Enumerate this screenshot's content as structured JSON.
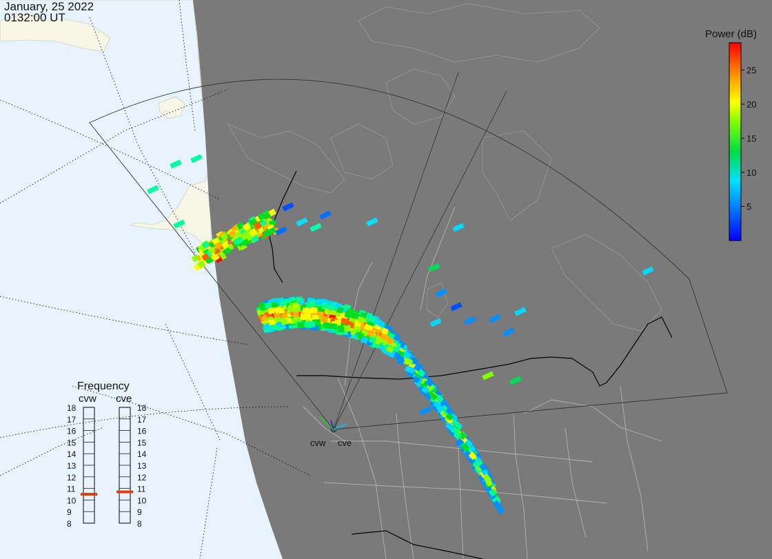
{
  "header": {
    "date": "January, 25 2022",
    "time": "0132:00 UT"
  },
  "colorbar": {
    "title": "Power (dB)",
    "ticks": [
      5,
      10,
      15,
      20,
      25
    ],
    "range": [
      0,
      29
    ],
    "colors": [
      "#0000ff",
      "#0080ff",
      "#00e0ff",
      "#00ff80",
      "#00dd00",
      "#80ff00",
      "#ffff00",
      "#ffb000",
      "#ff6000",
      "#ff0000"
    ]
  },
  "frequency_panel": {
    "title": "Frequency",
    "radars": [
      {
        "code": "cvw",
        "frequency_mhz": 10.5
      },
      {
        "code": "cve",
        "frequency_mhz": 10.7
      }
    ],
    "scale": [
      "18",
      "17",
      "16",
      "15",
      "14",
      "13",
      "12",
      "11",
      "10",
      "9",
      "8"
    ],
    "marker_color": "#e04010"
  },
  "radar_sites": [
    {
      "code": "cvw",
      "label": "cvw"
    },
    {
      "code": "cve",
      "label": "cve"
    }
  ],
  "map_colors": {
    "ocean_day": "#e8f4fd",
    "land_day": "#f8f6e6",
    "night": "#7a7a7a",
    "boundaries": "#b4b4b4",
    "border": "#000000",
    "grid": "#000000"
  }
}
